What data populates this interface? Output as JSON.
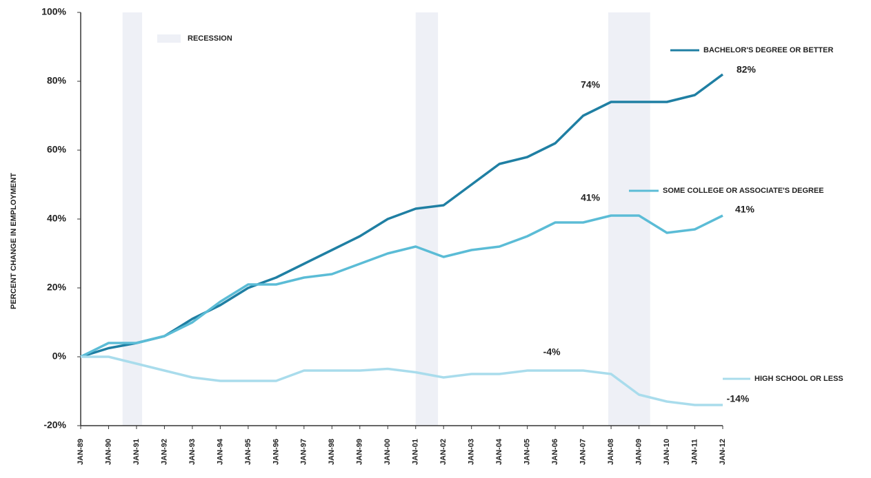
{
  "chart_data": {
    "type": "line",
    "y_label": "PERCENT CHANGE IN EMPLOYMENT",
    "categories": [
      "JAN-89",
      "JAN-90",
      "JAN-91",
      "JAN-92",
      "JAN-93",
      "JAN-94",
      "JAN-95",
      "JAN-96",
      "JAN-97",
      "JAN-98",
      "JAN-99",
      "JAN-00",
      "JAN-01",
      "JAN-02",
      "JAN-03",
      "JAN-04",
      "JAN-05",
      "JAN-06",
      "JAN-07",
      "JAN-08",
      "JAN-09",
      "JAN-10",
      "JAN-11",
      "JAN-12"
    ],
    "series": [
      {
        "name": "BACHELOR'S DEGREE OR BETTER",
        "color": "#1f7fa3",
        "values": [
          0,
          2.5,
          4,
          6,
          11,
          15,
          20,
          23,
          27,
          31,
          35,
          40,
          43,
          44,
          50,
          56,
          58,
          62,
          70,
          74,
          74,
          74,
          76,
          82
        ]
      },
      {
        "name": "SOME COLLEGE OR ASSOCIATE'S DEGREE",
        "color": "#5bbcd6",
        "values": [
          0,
          4,
          4,
          6,
          10,
          16,
          21,
          21,
          23,
          24,
          27,
          30,
          32,
          29,
          31,
          32,
          35,
          39,
          39,
          41,
          41,
          36,
          37,
          41
        ]
      },
      {
        "name": "HIGH SCHOOL OR LESS",
        "color": "#a9dcec",
        "values": [
          0,
          0,
          -2,
          -4,
          -6,
          -7,
          -7,
          -7,
          -4,
          -4,
          -4,
          -3.5,
          -4.5,
          -6,
          -5,
          -5,
          -4,
          -4,
          -4,
          -5,
          -11,
          -13,
          -14,
          -14
        ]
      }
    ],
    "annotations": [
      {
        "label": "74%",
        "series": 0,
        "index": 19,
        "value": 74
      },
      {
        "label": "82%",
        "series": 0,
        "index": 23,
        "value": 82
      },
      {
        "label": "41%",
        "series": 1,
        "index": 19,
        "value": 41
      },
      {
        "label": "41%",
        "series": 1,
        "index": 23,
        "value": 41
      },
      {
        "label": "-4%",
        "series": 2,
        "index": 17,
        "value": -4
      },
      {
        "label": "-14%",
        "series": 2,
        "index": 23,
        "value": -14
      }
    ],
    "recession_label": "RECESSION",
    "recession_color": "#eef0f6",
    "recessions": [
      [
        1.5,
        2.2
      ],
      [
        12.0,
        12.8
      ],
      [
        18.9,
        20.4
      ]
    ],
    "ylim": [
      -20,
      100
    ],
    "yticks": [
      {
        "value": -20,
        "label": "-20%"
      },
      {
        "value": 0,
        "label": "0%"
      },
      {
        "value": 20,
        "label": "20%"
      },
      {
        "value": 40,
        "label": "40%"
      },
      {
        "value": 60,
        "label": "60%"
      },
      {
        "value": 80,
        "label": "80%"
      },
      {
        "value": 100,
        "label": "100%"
      }
    ],
    "grid": false
  }
}
